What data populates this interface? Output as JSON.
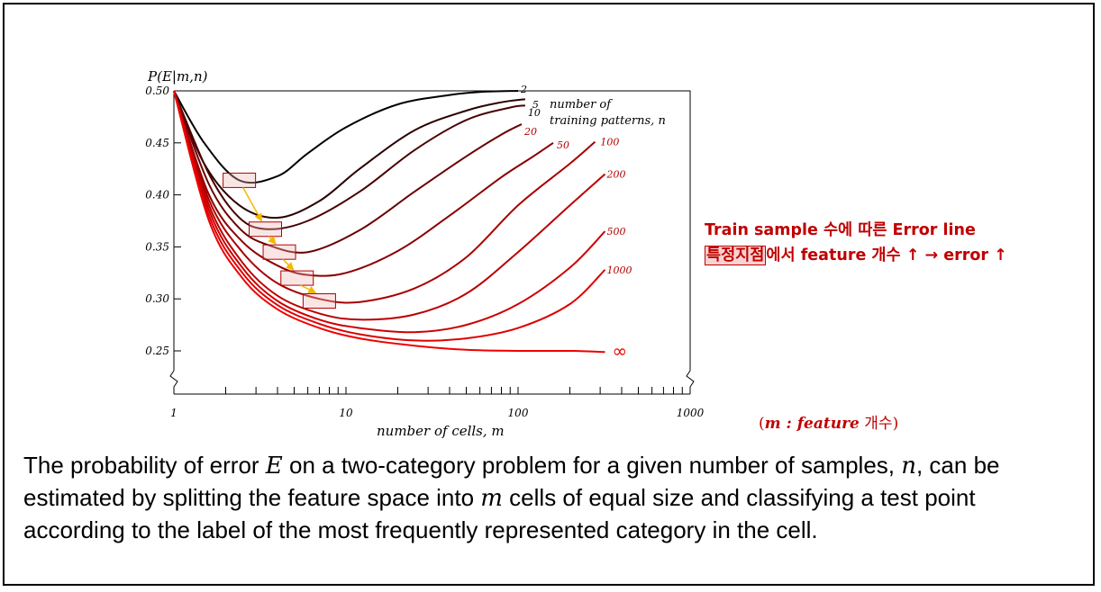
{
  "chart_data": {
    "type": "line",
    "y_axis_label": "P(E|m,n)",
    "x_axis_label": "number of cells, m",
    "legend_title_line1": "number of",
    "legend_title_line2": "training patterns, n",
    "x_scale": "log",
    "xlim": [
      1,
      1000
    ],
    "ylim": [
      0.25,
      0.5
    ],
    "x_tick_labels": [
      "1",
      "10",
      "100",
      "1000"
    ],
    "y_tick_labels": [
      "0.50",
      "0.45",
      "0.40",
      "0.35",
      "0.30",
      "0.25"
    ],
    "series": [
      {
        "name": "2",
        "color": "#000000",
        "x": [
          1,
          1.5,
          2.4,
          4,
          6,
          10,
          20,
          40,
          60,
          100
        ],
        "y": [
          0.5,
          0.45,
          0.414,
          0.418,
          0.44,
          0.465,
          0.487,
          0.496,
          0.499,
          0.5
        ]
      },
      {
        "name": "5",
        "color": "#2a0000",
        "x": [
          1,
          1.5,
          2.4,
          4,
          7,
          12,
          25,
          50,
          80,
          110
        ],
        "y": [
          0.5,
          0.43,
          0.39,
          0.378,
          0.394,
          0.425,
          0.462,
          0.481,
          0.489,
          0.492
        ]
      },
      {
        "name": "10",
        "color": "#4a0000",
        "x": [
          1,
          1.6,
          2.4,
          3.5,
          6,
          12,
          25,
          50,
          90,
          110
        ],
        "y": [
          0.5,
          0.42,
          0.378,
          0.367,
          0.375,
          0.403,
          0.443,
          0.472,
          0.484,
          0.486
        ]
      },
      {
        "name": "20",
        "color": "#6a0000",
        "x": [
          1,
          1.6,
          2.4,
          3.5,
          6,
          12,
          25,
          50,
          80,
          105
        ],
        "y": [
          0.5,
          0.41,
          0.368,
          0.352,
          0.345,
          0.366,
          0.403,
          0.437,
          0.458,
          0.468
        ]
      },
      {
        "name": "50",
        "color": "#8a0000",
        "x": [
          1,
          1.6,
          2.5,
          4,
          6,
          10,
          20,
          40,
          80,
          120,
          160
        ],
        "y": [
          0.5,
          0.4,
          0.355,
          0.332,
          0.323,
          0.325,
          0.346,
          0.38,
          0.417,
          0.436,
          0.45
        ]
      },
      {
        "name": "100",
        "color": "#a80000",
        "x": [
          1,
          1.6,
          2.5,
          4,
          7,
          12,
          25,
          50,
          100,
          200,
          280
        ],
        "y": [
          0.5,
          0.395,
          0.345,
          0.315,
          0.3,
          0.297,
          0.31,
          0.34,
          0.39,
          0.43,
          0.451
        ]
      },
      {
        "name": "200",
        "color": "#bb0000",
        "x": [
          1,
          1.6,
          2.5,
          4,
          7,
          12,
          25,
          50,
          100,
          200,
          320
        ],
        "y": [
          0.5,
          0.39,
          0.335,
          0.303,
          0.286,
          0.28,
          0.285,
          0.305,
          0.345,
          0.39,
          0.42
        ]
      },
      {
        "name": "500",
        "color": "#cc0000",
        "x": [
          1,
          1.6,
          2.5,
          4,
          7,
          12,
          25,
          50,
          100,
          200,
          320
        ],
        "y": [
          0.5,
          0.385,
          0.33,
          0.298,
          0.28,
          0.272,
          0.268,
          0.275,
          0.295,
          0.33,
          0.365
        ]
      },
      {
        "name": "1000",
        "color": "#dd0000",
        "x": [
          1,
          1.6,
          2.5,
          4,
          7,
          12,
          25,
          50,
          100,
          200,
          320
        ],
        "y": [
          0.5,
          0.38,
          0.325,
          0.294,
          0.276,
          0.266,
          0.26,
          0.262,
          0.272,
          0.295,
          0.328
        ]
      },
      {
        "name": "∞",
        "color": "#ee0000",
        "x": [
          1,
          1.6,
          2.5,
          4,
          7,
          12,
          25,
          50,
          100,
          200,
          320
        ],
        "y": [
          0.5,
          0.375,
          0.32,
          0.29,
          0.272,
          0.262,
          0.255,
          0.251,
          0.25,
          0.25,
          0.249
        ]
      }
    ],
    "highlight_boxes": [
      {
        "x": 2.4,
        "y": 0.414
      },
      {
        "x": 3.4,
        "y": 0.367
      },
      {
        "x": 4.1,
        "y": 0.345
      },
      {
        "x": 5.2,
        "y": 0.32
      },
      {
        "x": 7.0,
        "y": 0.298
      }
    ]
  },
  "annotation": {
    "line1": "Train sample 수에 따른 Error line",
    "line2_highlight": "특정지점",
    "line2_rest": "에서 feature 개수 ↑ → error ↑",
    "m_note_open": "(",
    "m_note_var": "m : feature",
    "m_note_word": " 개수",
    "m_note_close": ")"
  },
  "caption": {
    "part1": "The probability of error ",
    "var_E": "E",
    "part2": " on a two-category problem for a given number of samples, ",
    "var_n": "n",
    "part3": ", can be estimated by splitting the feature space into ",
    "var_m": "m",
    "part4": " cells of equal size and classifying a test point according to the label of the most frequently represented category in the cell."
  }
}
